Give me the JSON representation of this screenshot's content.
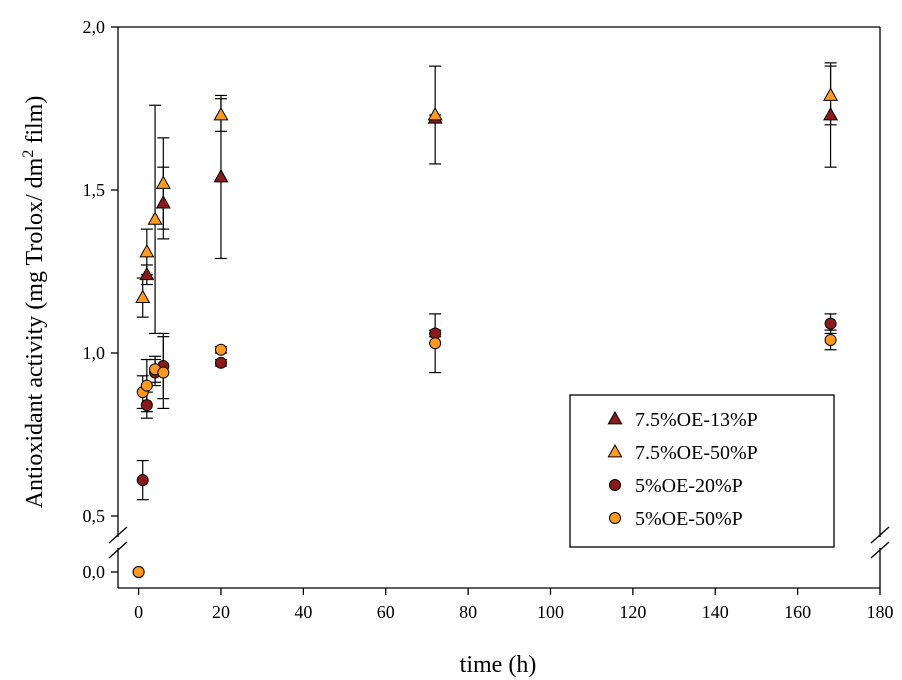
{
  "chart_data": {
    "type": "scatter",
    "xlabel": "time (h)",
    "ylabel_prefix": "Antioxidant activity (mg Trolox/ dm",
    "ylabel_sup": "2",
    "ylabel_suffix": " film)",
    "xlim": [
      -5,
      180
    ],
    "x_ticks": [
      0,
      20,
      40,
      60,
      80,
      100,
      120,
      140,
      160,
      180
    ],
    "x_tick_labels": [
      "0",
      "20",
      "40",
      "60",
      "80",
      "100",
      "120",
      "140",
      "160",
      "180"
    ],
    "y_axis_break": {
      "lower_range": [
        0.0,
        0.07
      ],
      "upper_range": [
        0.5,
        2.0
      ]
    },
    "y_ticks": [
      0.0,
      0.5,
      1.0,
      1.5,
      2.0
    ],
    "y_tick_labels": [
      "0,0",
      "0,5",
      "1,0",
      "1,5",
      "2,0"
    ],
    "grid": false,
    "legend_position": "bottom-right",
    "series": [
      {
        "name": "7.5%OE-13%P",
        "marker": "triangle",
        "color": "#8B1A1A",
        "points": [
          {
            "x": 2,
            "y": 1.24,
            "err": 0.03
          },
          {
            "x": 6,
            "y": 1.46,
            "err": 0.11
          },
          {
            "x": 20,
            "y": 1.54,
            "err": 0.25
          },
          {
            "x": 72,
            "y": 1.72,
            "err": 0.01
          },
          {
            "x": 168,
            "y": 1.73,
            "err": 0.16
          }
        ]
      },
      {
        "name": "7.5%OE-50%P",
        "marker": "triangle",
        "color": "#FF9A1F",
        "points": [
          {
            "x": 1,
            "y": 1.17,
            "err": 0.06
          },
          {
            "x": 2,
            "y": 1.31,
            "err": 0.07
          },
          {
            "x": 4,
            "y": 1.41,
            "err": 0.35
          },
          {
            "x": 6,
            "y": 1.52,
            "err": 0.14
          },
          {
            "x": 20,
            "y": 1.73,
            "err": 0.05
          },
          {
            "x": 72,
            "y": 1.73,
            "err": 0.15
          },
          {
            "x": 168,
            "y": 1.79,
            "err": 0.09
          }
        ]
      },
      {
        "name": "5%OE-20%P",
        "marker": "circle",
        "color": "#8B1A1A",
        "points": [
          {
            "x": 0,
            "y": 0.0,
            "err": 0
          },
          {
            "x": 1,
            "y": 0.61,
            "err": 0.06
          },
          {
            "x": 2,
            "y": 0.84,
            "err": 0.04
          },
          {
            "x": 4,
            "y": 0.94,
            "err": 0.04
          },
          {
            "x": 6,
            "y": 0.96,
            "err": 0.1
          },
          {
            "x": 20,
            "y": 0.97,
            "err": 0.01
          },
          {
            "x": 72,
            "y": 1.06,
            "err": 0.01
          },
          {
            "x": 168,
            "y": 1.09,
            "err": 0.03
          }
        ]
      },
      {
        "name": "5%OE-50%P",
        "marker": "circle",
        "color": "#FF9A1F",
        "points": [
          {
            "x": 0,
            "y": 0.0,
            "err": 0
          },
          {
            "x": 1,
            "y": 0.88,
            "err": 0.05
          },
          {
            "x": 2,
            "y": 0.9,
            "err": 0.08
          },
          {
            "x": 4,
            "y": 0.95,
            "err": 0.04
          },
          {
            "x": 6,
            "y": 0.94,
            "err": 0.11
          },
          {
            "x": 20,
            "y": 1.01,
            "err": 0.01
          },
          {
            "x": 72,
            "y": 1.03,
            "err": 0.09
          },
          {
            "x": 168,
            "y": 1.04,
            "err": 0.03
          }
        ]
      }
    ]
  }
}
